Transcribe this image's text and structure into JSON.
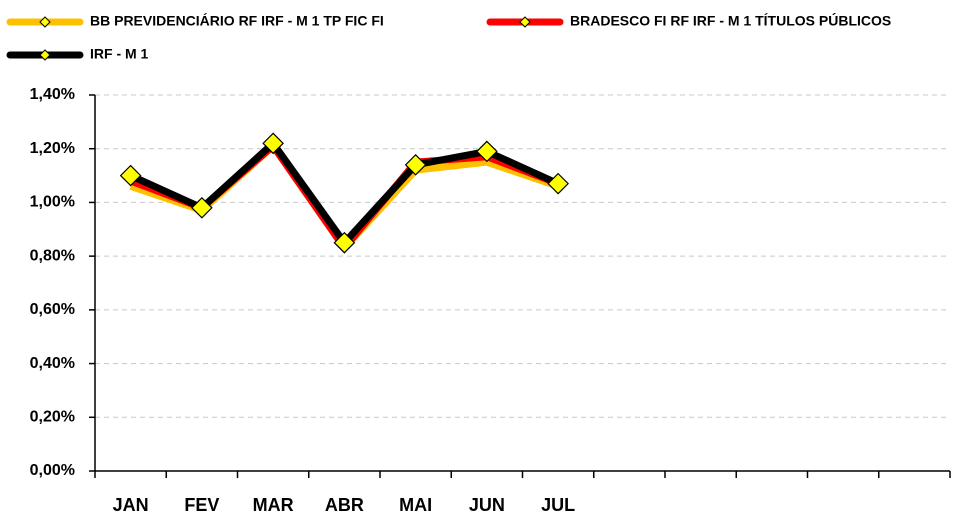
{
  "chart_data": {
    "type": "line",
    "categories": [
      "JAN",
      "FEV",
      "MAR",
      "ABR",
      "MAI",
      "JUN",
      "JUL",
      null,
      null,
      null,
      null,
      null
    ],
    "series": [
      {
        "name": "BB PREVIDENCIÁRIO RF IRF - M 1 TP FIC FI",
        "color": "#ffc000",
        "values": [
          1.06,
          0.97,
          1.21,
          0.83,
          1.12,
          1.15,
          1.06,
          null,
          null,
          null,
          null,
          null
        ]
      },
      {
        "name": "BRADESCO FI RF IRF - M 1 TÍTULOS PÚBLICOS",
        "color": "#ff0000",
        "values": [
          1.08,
          0.98,
          1.21,
          0.83,
          1.15,
          1.17,
          1.07,
          null,
          null,
          null,
          null,
          null
        ]
      },
      {
        "name": "IRF - M 1",
        "color": "#000000",
        "markers": true,
        "values": [
          1.1,
          0.98,
          1.22,
          0.85,
          1.14,
          1.19,
          1.07,
          null,
          null,
          null,
          null,
          null
        ]
      }
    ],
    "marker_color": "#ffff00",
    "ylim": [
      0,
      1.4
    ],
    "yticks": [
      {
        "value": 0,
        "label": "0,00%"
      },
      {
        "value": 0.2,
        "label": "0,20%"
      },
      {
        "value": 0.4,
        "label": "0,40%"
      },
      {
        "value": 0.6,
        "label": "0,60%"
      },
      {
        "value": 0.8,
        "label": "0,80%"
      },
      {
        "value": 1.0,
        "label": "1,00%"
      },
      {
        "value": 1.2,
        "label": "1,20%"
      },
      {
        "value": 1.4,
        "label": "1,40%"
      }
    ],
    "grid": true
  }
}
